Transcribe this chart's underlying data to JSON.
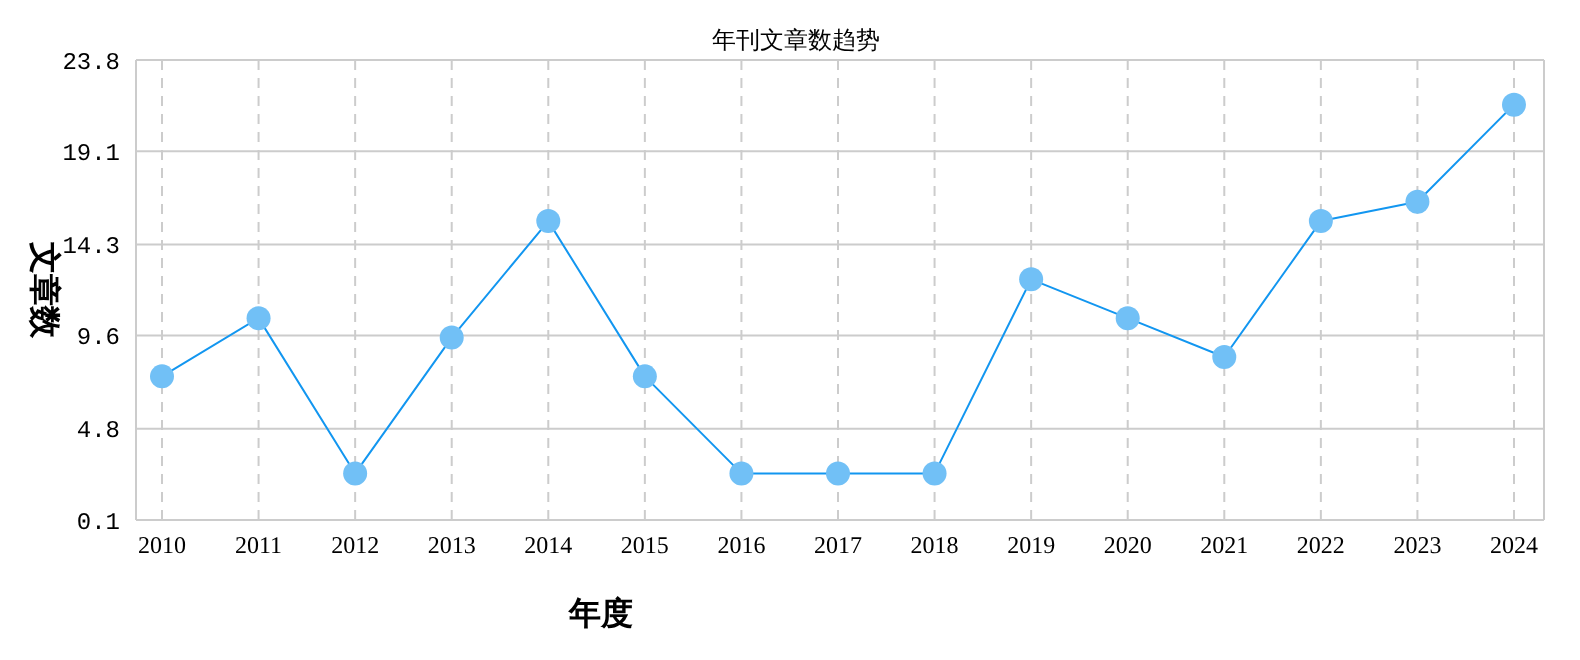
{
  "chart_data": {
    "type": "line",
    "title": "年刊文章数趋势",
    "xlabel": "年度",
    "ylabel": "文章数",
    "categories": [
      "2010",
      "2011",
      "2012",
      "2013",
      "2014",
      "2015",
      "2016",
      "2017",
      "2018",
      "2019",
      "2020",
      "2021",
      "2022",
      "2023",
      "2024"
    ],
    "series": [
      {
        "color": "#1296f0",
        "values": [
          7.5,
          10.5,
          2.5,
          9.5,
          15.5,
          7.5,
          2.5,
          2.5,
          2.5,
          12.5,
          10.5,
          8.5,
          15.5,
          16.5,
          21.5
        ]
      }
    ],
    "ylim": [
      0.1,
      23.8
    ],
    "yticks": [
      0.1,
      4.8,
      9.6,
      14.3,
      19.1,
      23.8
    ],
    "grid": true,
    "legend": false,
    "marker": "circle",
    "line_style": "solid"
  }
}
